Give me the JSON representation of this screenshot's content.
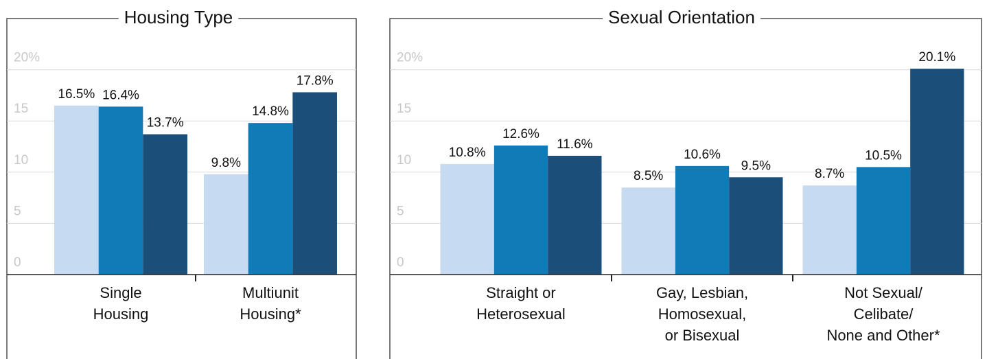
{
  "chart_data": [
    {
      "type": "bar",
      "title": "Housing Type",
      "categories": [
        "Single\nHousing",
        "Multiunit\nHousing*"
      ],
      "series": [
        {
          "color": "#c6dbf1",
          "values": [
            16.5,
            9.8
          ],
          "value_labels": [
            "16.5%",
            "9.8%"
          ]
        },
        {
          "color": "#117bb8",
          "values": [
            16.4,
            14.8
          ],
          "value_labels": [
            "16.4%",
            "14.8%"
          ]
        },
        {
          "color": "#1b4f7a",
          "values": [
            13.7,
            17.8
          ],
          "value_labels": [
            "13.7%",
            "17.8%"
          ]
        }
      ],
      "ylim": [
        0,
        25
      ],
      "yticks": [
        0,
        5,
        10,
        15,
        {
          "value": 20,
          "label": "20%"
        }
      ],
      "grid": true
    },
    {
      "type": "bar",
      "title": "Sexual Orientation",
      "categories": [
        "Straight or\nHeterosexual",
        "Gay, Lesbian,\nHomosexual,\nor Bisexual",
        "Not Sexual/\nCelibate/\nNone and Other*"
      ],
      "series": [
        {
          "color": "#c6dbf1",
          "values": [
            10.8,
            8.5,
            8.7
          ],
          "value_labels": [
            "10.8%",
            "8.5%",
            "8.7%"
          ]
        },
        {
          "color": "#117bb8",
          "values": [
            12.6,
            10.6,
            10.5
          ],
          "value_labels": [
            "12.6%",
            "10.6%",
            "10.5%"
          ]
        },
        {
          "color": "#1b4f7a",
          "values": [
            11.6,
            9.5,
            20.1
          ],
          "value_labels": [
            "11.6%",
            "9.5%",
            "20.1%"
          ]
        }
      ],
      "ylim": [
        0,
        25
      ],
      "yticks": [
        0,
        5,
        10,
        15,
        {
          "value": 20,
          "label": "20%"
        }
      ],
      "grid": true
    }
  ]
}
